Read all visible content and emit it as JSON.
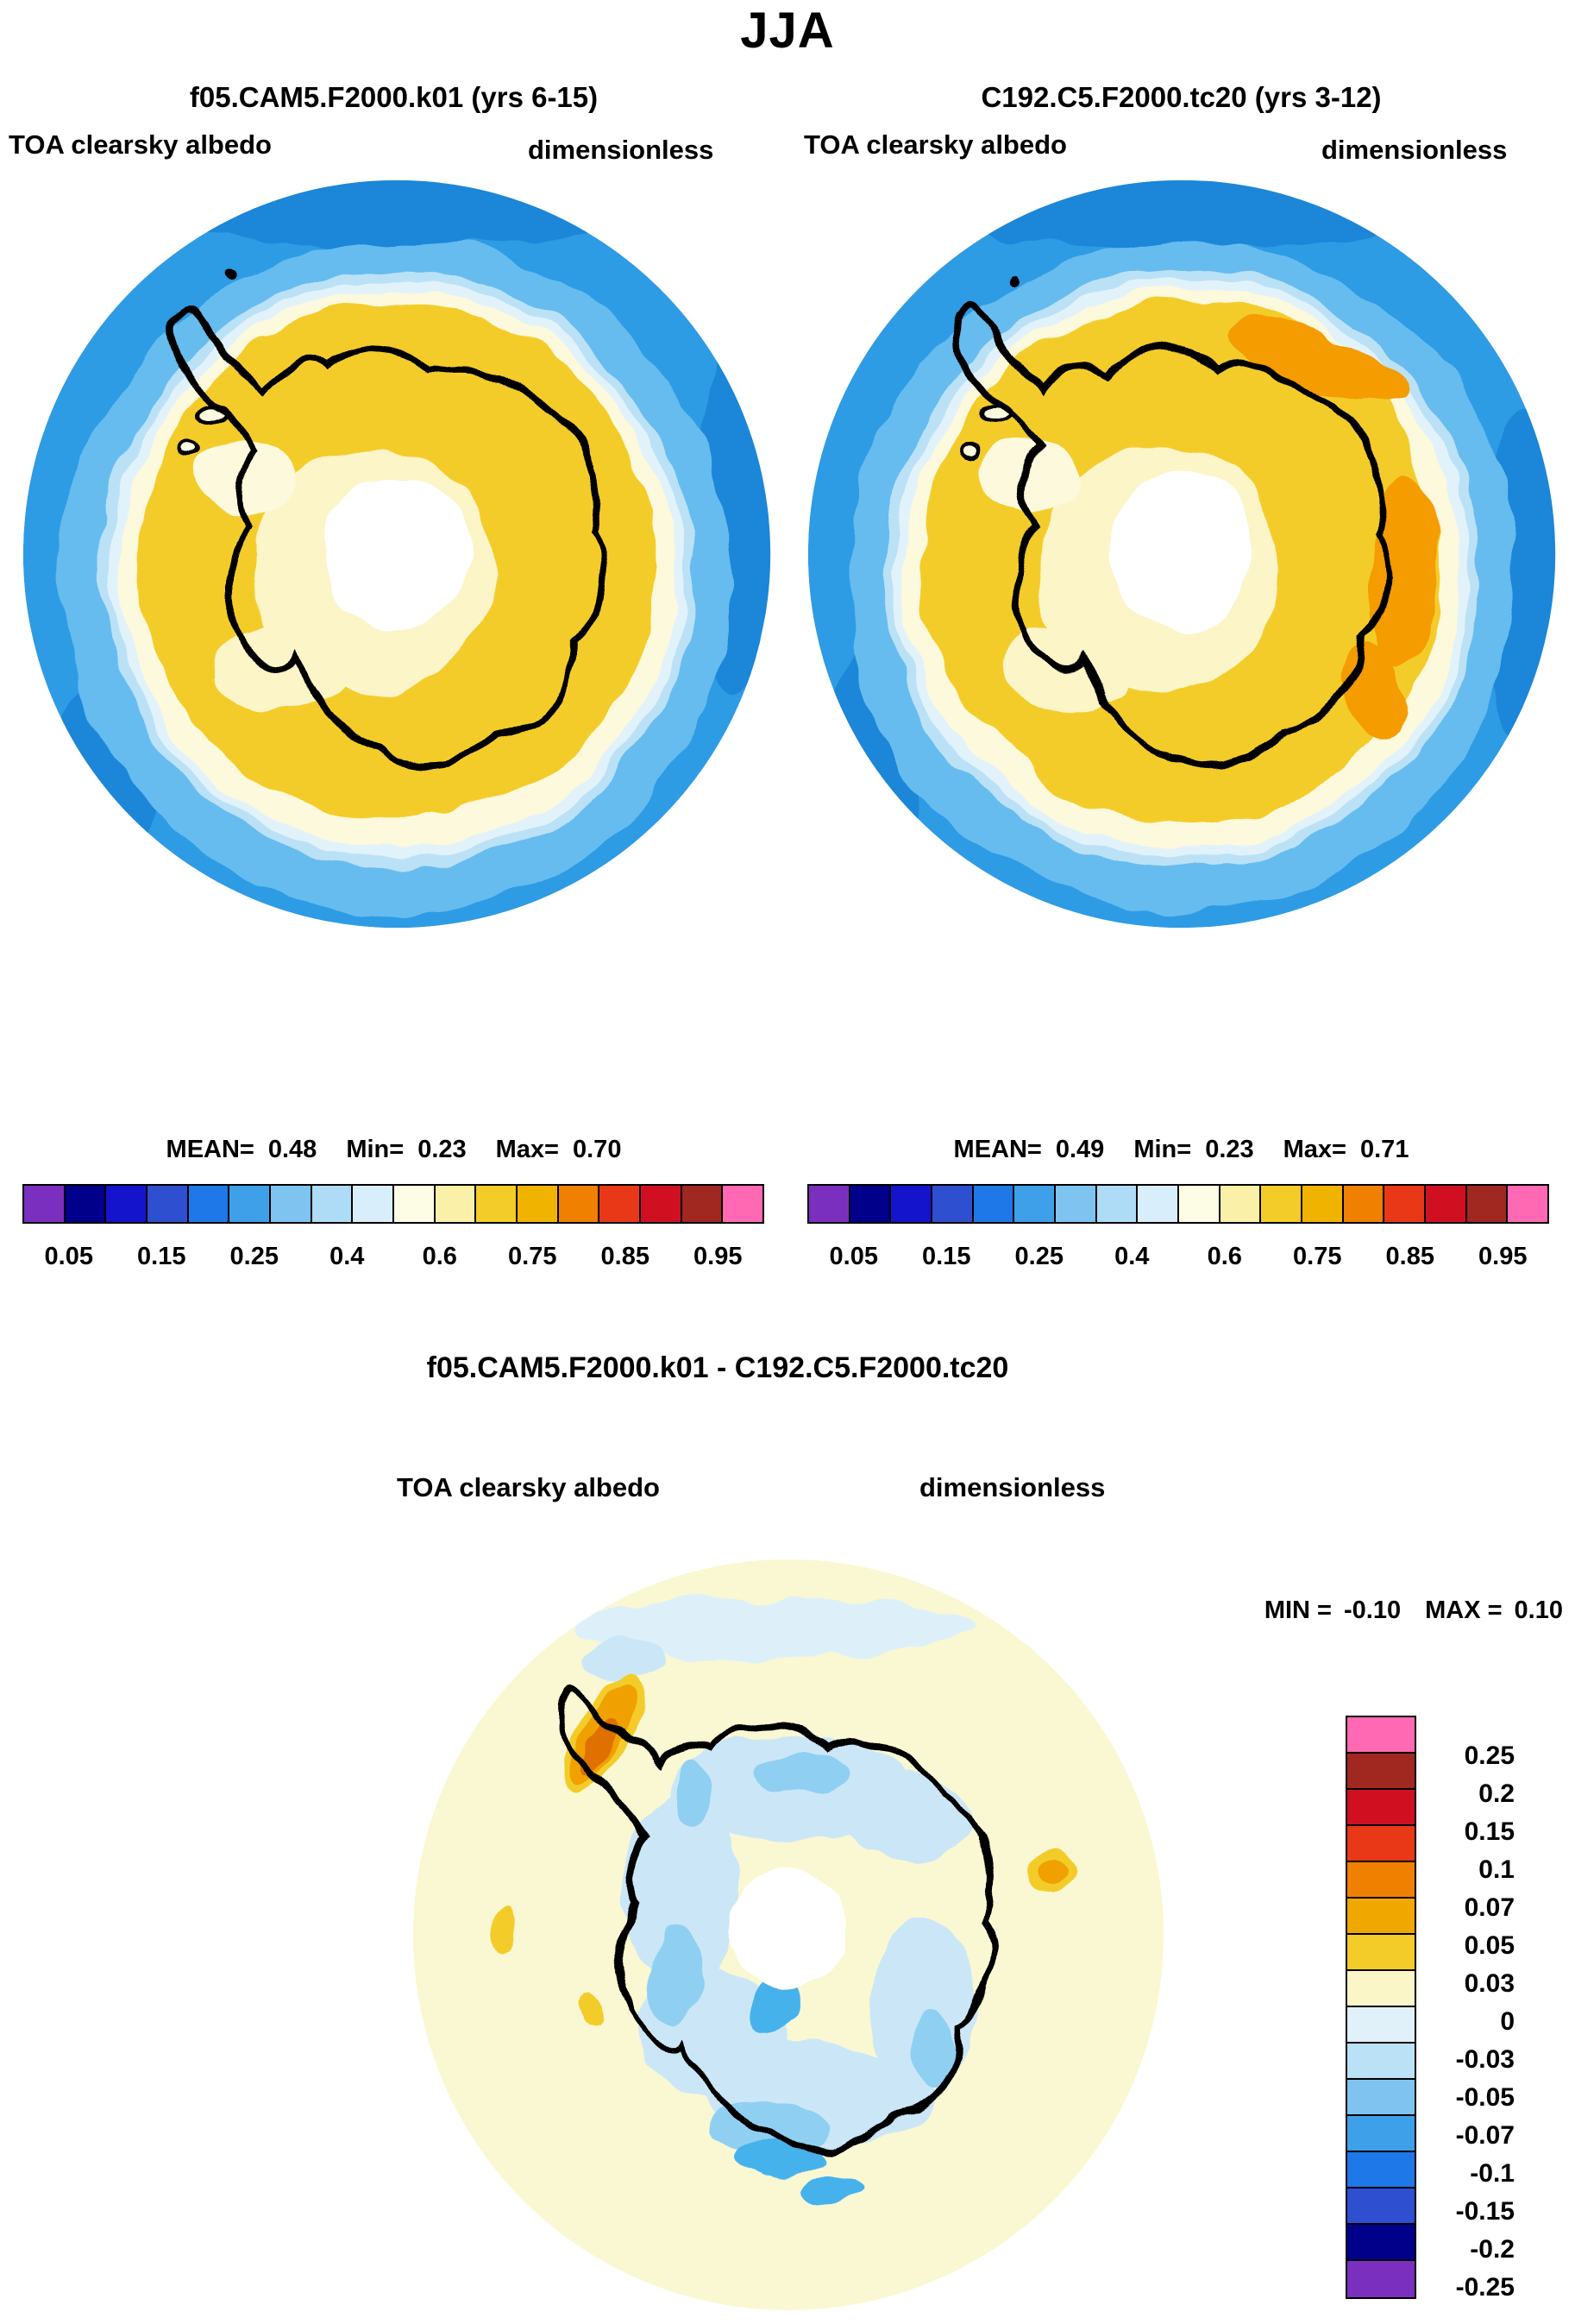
{
  "title": {
    "text": "JJA"
  },
  "left_panel": {
    "run_label": "f05.CAM5.F2000.k01 (yrs 6-15)",
    "field_label": "TOA clearsky albedo",
    "units_label": "dimensionless",
    "stats": {
      "mean_label": "MEAN=",
      "mean": "0.48",
      "min_label": "Min=",
      "min": "0.23",
      "max_label": "Max=",
      "max": "0.70"
    }
  },
  "right_panel": {
    "run_label": "C192.C5.F2000.tc20 (yrs 3-12)",
    "field_label": "TOA clearsky albedo",
    "units_label": "dimensionless",
    "stats": {
      "mean_label": "MEAN=",
      "mean": "0.49",
      "min_label": "Min=",
      "min": "0.23",
      "max_label": "Max=",
      "max": "0.71"
    }
  },
  "diff_panel": {
    "run_label": "f05.CAM5.F2000.k01 - C192.C5.F2000.tc20",
    "field_label": "TOA clearsky albedo",
    "units_label": "dimensionless",
    "range": {
      "min_label": "MIN =",
      "min": "-0.10",
      "max_label": "MAX =",
      "max": "0.10"
    }
  },
  "colorbar_h": {
    "ticks": [
      "0.05",
      "0.15",
      "0.25",
      "0.4",
      "0.6",
      "0.75",
      "0.85",
      "0.95"
    ],
    "colors": [
      "#7B2FBE",
      "#00008B",
      "#1414CC",
      "#2E4FD0",
      "#1E78E8",
      "#3FA0EA",
      "#7FC4F0",
      "#AEDCF6",
      "#D8EEFA",
      "#FDFDE6",
      "#FAF0A8",
      "#F4CC29",
      "#F0B400",
      "#F08000",
      "#E83818",
      "#D01020",
      "#A02820",
      "#FF69B4"
    ]
  },
  "colorbar_v": {
    "ticks": [
      "0.25",
      "0.2",
      "0.15",
      "0.1",
      "0.07",
      "0.05",
      "0.03",
      "0",
      "-0.03",
      "-0.05",
      "-0.07",
      "-0.1",
      "-0.15",
      "-0.2",
      "-0.25"
    ],
    "colors": [
      "#FF69B4",
      "#A02820",
      "#D01020",
      "#E83818",
      "#F08000",
      "#F0A800",
      "#F4CC29",
      "#FBF6C8",
      "#E0F1FA",
      "#BBE1F6",
      "#7FC4F0",
      "#3FA0EA",
      "#1E78E8",
      "#2E4FD0",
      "#00008B",
      "#7B2FBE"
    ]
  },
  "palette": {
    "ocean_dark": "#1E86D8",
    "ocean_mid": "#2E9BE5",
    "ocean_light": "#66BCEF",
    "ice_pale_blue": "#BBE1F6",
    "ice_palest": "#E2F2FB",
    "cream": "#FCF9DC",
    "gold": "#F4CC29",
    "inner_cream": "#FBF5C8",
    "white": "#FFFFFF",
    "orange": "#F49C00",
    "island_fill": "#FDFAE0",
    "diff_bg": "#FAF8D2",
    "diff_blue0": "#DDF0FA",
    "diff_blue1": "#CBE7F7",
    "diff_blue2": "#8FD0F2",
    "diff_blue3": "#45B2EC",
    "diff_orange": "#F0A000",
    "diff_orange_dark": "#E07000"
  },
  "chart_data": [
    {
      "type": "heatmap",
      "subtype": "polar-stereographic-contour-map",
      "region": "Antarctica / Southern Ocean",
      "season": "JJA",
      "title": "f05.CAM5.F2000.k01 (yrs 6-15)",
      "field": "TOA clearsky albedo",
      "units": "dimensionless",
      "stats": {
        "mean": 0.48,
        "min": 0.23,
        "max": 0.7
      },
      "levels": [
        0.05,
        0.1,
        0.15,
        0.2,
        0.25,
        0.3,
        0.4,
        0.5,
        0.6,
        0.7,
        0.75,
        0.8,
        0.85,
        0.9,
        0.95
      ],
      "labeled_levels": [
        0.05,
        0.15,
        0.25,
        0.4,
        0.6,
        0.75,
        0.85,
        0.95
      ],
      "legend_position": "bottom-horizontal",
      "description": "Open ocean albedo ~0.15-0.25 (blue rings) surrounding a broad sea-ice zone ~0.6 (gold); pale ~0.3-0.5 transition ring at the ice edge; pale ring and white polar data hole at the pole; black Antarctic coastline overlaid."
    },
    {
      "type": "heatmap",
      "subtype": "polar-stereographic-contour-map",
      "region": "Antarctica / Southern Ocean",
      "season": "JJA",
      "title": "C192.C5.F2000.tc20 (yrs 3-12)",
      "field": "TOA clearsky albedo",
      "units": "dimensionless",
      "stats": {
        "mean": 0.49,
        "min": 0.23,
        "max": 0.71
      },
      "levels": [
        0.05,
        0.1,
        0.15,
        0.2,
        0.25,
        0.3,
        0.4,
        0.5,
        0.6,
        0.7,
        0.75,
        0.8,
        0.85,
        0.9,
        0.95
      ],
      "labeled_levels": [
        0.05,
        0.15,
        0.25,
        0.4,
        0.6,
        0.75,
        0.85,
        0.95
      ],
      "legend_position": "bottom-horizontal",
      "description": "Same pattern as left panel but with orange patches ~0.7-0.75 over East Antarctic sea ice (upper-right and right of the continent)."
    },
    {
      "type": "heatmap",
      "subtype": "polar-stereographic-difference-map",
      "region": "Antarctica / Southern Ocean",
      "season": "JJA",
      "title": "f05.CAM5.F2000.k01 - C192.C5.F2000.tc20",
      "field": "TOA clearsky albedo",
      "units": "dimensionless",
      "stats": {
        "min": -0.1,
        "max": 0.1
      },
      "levels": [
        -0.25,
        -0.2,
        -0.15,
        -0.1,
        -0.07,
        -0.05,
        -0.03,
        0,
        0.03,
        0.05,
        0.07,
        0.1,
        0.15,
        0.2,
        0.25
      ],
      "legend_position": "right-vertical",
      "description": "Mostly 0 to +0.03 (pale yellow); patches of -0.03 to -0.07 (light blues) around the coast and over the pack ice; +0.05 to +0.1 (orange/gold) streak along the Antarctic Peninsula and a small orange spot east of the continent; white polar data hole."
    }
  ]
}
